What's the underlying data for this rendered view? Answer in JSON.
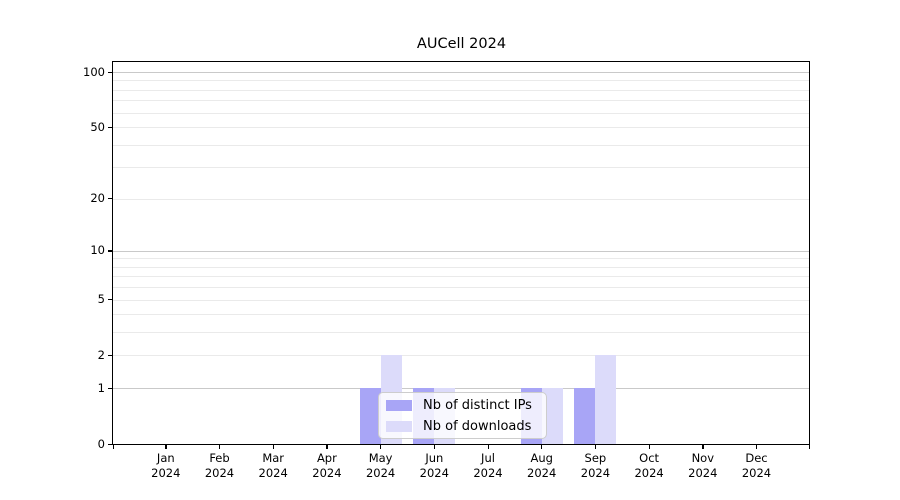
{
  "chart_data": {
    "type": "bar",
    "title": "AUCell 2024",
    "categories": [
      "Jan",
      "Feb",
      "Mar",
      "Apr",
      "May",
      "Jun",
      "Jul",
      "Aug",
      "Sep",
      "Oct",
      "Nov",
      "Dec"
    ],
    "x_tick_year_line": "2024",
    "series": [
      {
        "name": "Nb of distinct IPs",
        "color": "#a8a5f6",
        "values": [
          0,
          0,
          0,
          0,
          1,
          1,
          0,
          1,
          1,
          0,
          0,
          0
        ]
      },
      {
        "name": "Nb of downloads",
        "color": "#dcdbfa",
        "values": [
          0,
          0,
          0,
          0,
          2,
          1,
          0,
          1,
          2,
          0,
          0,
          0
        ]
      }
    ],
    "y_axis": {
      "scale": "log1p",
      "min": 0,
      "max": 100,
      "tick_values": [
        0,
        1,
        2,
        5,
        10,
        20,
        50,
        100
      ],
      "major_grid_values": [
        1,
        10,
        100
      ],
      "minor_grid_values": [
        2,
        3,
        4,
        5,
        6,
        7,
        8,
        9,
        20,
        30,
        40,
        50,
        60,
        70,
        80,
        90
      ]
    },
    "x_axis": {
      "edge_minor_ticks": true
    },
    "grid": true,
    "legend_position": "lower center inside"
  },
  "colors": {
    "background": "#ffffff",
    "spine": "#000000",
    "major_grid": "#c9c9c9",
    "minor_grid": "#eaeaea",
    "text": "#000000",
    "legend_border": "#cdcdcd"
  }
}
